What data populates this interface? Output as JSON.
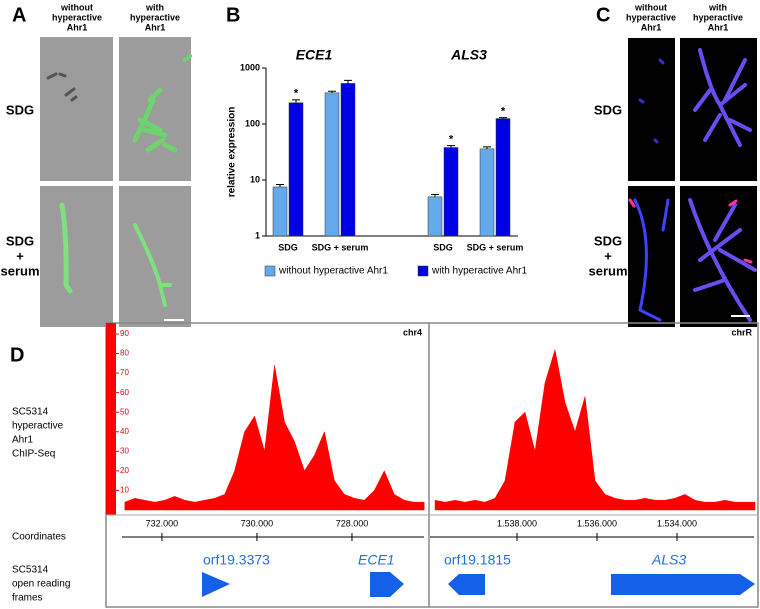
{
  "panels": {
    "A": {
      "label": "A",
      "columns": [
        [
          "without",
          "hyperactive",
          "Ahr1"
        ],
        [
          "with",
          "hyperactive",
          "Ahr1"
        ]
      ],
      "rows": [
        [
          "SDG"
        ],
        [
          "SDG",
          "+",
          "serum"
        ]
      ]
    },
    "B": {
      "label": "B"
    },
    "C": {
      "label": "C",
      "columns": [
        [
          "without",
          "hyperactive",
          "Ahr1"
        ],
        [
          "with",
          "hyperactive",
          "Ahr1"
        ]
      ],
      "rows": [
        [
          "SDG"
        ],
        [
          "SDG",
          "+",
          "serum"
        ]
      ]
    },
    "D": {
      "label": "D",
      "track_label": [
        "SC5314",
        "hyperactive",
        "Ahr1",
        "ChIP-Seq"
      ],
      "coordinates_label": "Coordinates",
      "orf_label": [
        "SC5314",
        "open reading",
        "frames"
      ],
      "genes": [
        "orf19.3373",
        "ECE1",
        "orf19.1815",
        "ALS3"
      ]
    }
  },
  "chart_data": [
    {
      "type": "bar",
      "ylabel": "relative expression",
      "groups": [
        "ECE1",
        "ALS3"
      ],
      "categories": [
        "SDG",
        "SDG + serum",
        "SDG",
        "SDG + serum"
      ],
      "series": [
        {
          "name": "without hyperactive Ahr1",
          "color": "#63a9ec",
          "values": [
            7.5,
            360,
            5,
            36
          ],
          "errors": [
            0.8,
            25,
            0.5,
            3
          ]
        },
        {
          "name": "with hyperactive Ahr1",
          "color": "#0000e6",
          "values": [
            240,
            530,
            38,
            125
          ],
          "errors": [
            30,
            70,
            3,
            5
          ],
          "significance": [
            "*",
            null,
            "*",
            "*"
          ]
        }
      ],
      "log": true,
      "ylim": [
        1,
        1000
      ],
      "yticks": [
        1,
        10,
        100,
        1000
      ]
    },
    {
      "type": "area",
      "name": "chr4",
      "color": "#ff0000",
      "x": [
        732780,
        732570,
        732360,
        732150,
        731940,
        731730,
        731520,
        731310,
        731100,
        730890,
        730680,
        730470,
        730260,
        730050,
        729840,
        729630,
        729420,
        729210,
        729000,
        728790,
        728580,
        728370,
        728160,
        727950,
        727740,
        727530,
        727320,
        727110,
        726900,
        726690,
        726480
      ],
      "values": [
        4,
        6,
        5,
        4,
        5,
        7,
        5,
        4,
        5,
        6,
        8,
        20,
        40,
        48,
        30,
        74,
        45,
        35,
        20,
        28,
        40,
        15,
        8,
        6,
        5,
        10,
        20,
        8,
        5,
        4,
        4
      ],
      "xlim": [
        732840,
        726400
      ],
      "ylim": [
        0,
        90
      ],
      "yticks": [
        10,
        20,
        30,
        40,
        50,
        60,
        70,
        80,
        90
      ],
      "xticks": [
        {
          "value": 732000,
          "label": "732.000"
        },
        {
          "value": 730000,
          "label": "730.000"
        },
        {
          "value": 728000,
          "label": "728.000"
        }
      ]
    },
    {
      "type": "area",
      "name": "chrR",
      "color": "#ff0000",
      "x": [
        1540050,
        1539800,
        1539550,
        1539300,
        1539050,
        1538800,
        1538550,
        1538300,
        1538050,
        1537800,
        1537550,
        1537300,
        1537050,
        1536800,
        1536550,
        1536300,
        1536050,
        1535800,
        1535550,
        1535300,
        1535050,
        1534800,
        1534550,
        1534300,
        1534050,
        1533800,
        1533550,
        1533300,
        1533050,
        1532800,
        1532550,
        1532300,
        1532050
      ],
      "values": [
        5,
        4,
        5,
        4,
        5,
        4,
        6,
        15,
        45,
        50,
        30,
        65,
        82,
        55,
        40,
        58,
        15,
        8,
        6,
        5,
        5,
        6,
        5,
        5,
        6,
        8,
        5,
        4,
        4,
        5,
        4,
        4,
        4
      ],
      "xlim": [
        1540175,
        1531975
      ],
      "ylim": [
        0,
        90
      ],
      "xticks": [
        {
          "value": 1538000,
          "label": "1.538.000"
        },
        {
          "value": 1536000,
          "label": "1.536.000"
        },
        {
          "value": 1534000,
          "label": "1.534.000"
        }
      ]
    }
  ]
}
